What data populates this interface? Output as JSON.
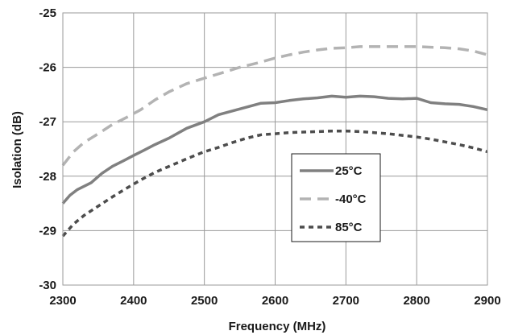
{
  "chart_data": {
    "type": "line",
    "xlabel": "Frequency (MHz)",
    "ylabel": "Isolation (dB)",
    "xlim": [
      2300,
      2900
    ],
    "ylim": [
      -30,
      -25
    ],
    "xticks": [
      2300,
      2400,
      2500,
      2600,
      2700,
      2800,
      2900
    ],
    "yticks": [
      -30,
      -29,
      -28,
      -27,
      -26,
      -25
    ],
    "x_tick_labels": [
      "2300",
      "2400",
      "2500",
      "2600",
      "2700",
      "2800",
      "2900"
    ],
    "y_tick_labels": [
      "-30",
      "-29",
      "-28",
      "-27",
      "-26",
      "-25"
    ],
    "grid": true,
    "legend_position": "center-right",
    "series": [
      {
        "name": "25°C",
        "color": "#808080",
        "style": "solid",
        "x": [
          2300,
          2310,
          2320,
          2340,
          2355,
          2370,
          2385,
          2400,
          2415,
          2430,
          2450,
          2475,
          2500,
          2520,
          2540,
          2560,
          2580,
          2600,
          2620,
          2640,
          2660,
          2680,
          2700,
          2720,
          2740,
          2760,
          2780,
          2800,
          2820,
          2840,
          2860,
          2880,
          2900
        ],
        "y": [
          -28.5,
          -28.35,
          -28.25,
          -28.12,
          -27.95,
          -27.82,
          -27.72,
          -27.62,
          -27.52,
          -27.42,
          -27.3,
          -27.12,
          -27.0,
          -26.87,
          -26.8,
          -26.73,
          -26.66,
          -26.65,
          -26.61,
          -26.58,
          -26.56,
          -26.53,
          -26.55,
          -26.53,
          -26.54,
          -26.57,
          -26.58,
          -26.57,
          -26.65,
          -26.67,
          -26.68,
          -26.72,
          -26.78
        ]
      },
      {
        "name": "-40°C",
        "color": "#b3b3b3",
        "style": "long-dash",
        "x": [
          2300,
          2315,
          2330,
          2350,
          2370,
          2390,
          2410,
          2430,
          2450,
          2475,
          2500,
          2525,
          2550,
          2575,
          2600,
          2620,
          2640,
          2660,
          2680,
          2700,
          2720,
          2740,
          2760,
          2780,
          2800,
          2820,
          2840,
          2860,
          2880,
          2900
        ],
        "y": [
          -27.8,
          -27.55,
          -27.38,
          -27.22,
          -27.05,
          -26.92,
          -26.78,
          -26.6,
          -26.45,
          -26.3,
          -26.2,
          -26.1,
          -26.0,
          -25.92,
          -25.83,
          -25.77,
          -25.72,
          -25.68,
          -25.65,
          -25.64,
          -25.62,
          -25.62,
          -25.62,
          -25.62,
          -25.62,
          -25.63,
          -25.64,
          -25.66,
          -25.7,
          -25.77
        ]
      },
      {
        "name": "85°C",
        "color": "#4d4d4d",
        "style": "short-dash",
        "x": [
          2300,
          2315,
          2330,
          2350,
          2370,
          2390,
          2410,
          2430,
          2450,
          2475,
          2500,
          2520,
          2540,
          2560,
          2580,
          2600,
          2620,
          2640,
          2660,
          2680,
          2700,
          2720,
          2740,
          2760,
          2780,
          2800,
          2820,
          2840,
          2860,
          2880,
          2900
        ],
        "y": [
          -29.1,
          -28.88,
          -28.72,
          -28.55,
          -28.38,
          -28.22,
          -28.07,
          -27.93,
          -27.82,
          -27.68,
          -27.55,
          -27.47,
          -27.38,
          -27.3,
          -27.24,
          -27.22,
          -27.2,
          -27.19,
          -27.18,
          -27.17,
          -27.17,
          -27.18,
          -27.2,
          -27.22,
          -27.25,
          -27.28,
          -27.32,
          -27.37,
          -27.42,
          -27.48,
          -27.55
        ]
      }
    ]
  }
}
